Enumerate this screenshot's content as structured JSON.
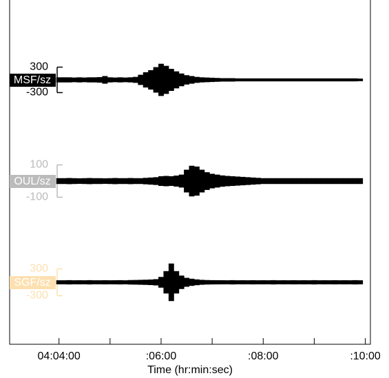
{
  "chart_data": {
    "type": "seismogram",
    "xlabel": "Time (hr:min:sec)",
    "xlim": [
      182,
      606
    ],
    "xticks": [
      {
        "value": 240,
        "label": "04:04:00"
      },
      {
        "value": 360,
        "label": ":06:00"
      },
      {
        "value": 480,
        "label": ":08:00"
      },
      {
        "value": 600,
        "label": ":10:00"
      }
    ],
    "minor_xticks": [
      300,
      420,
      540
    ],
    "x": [
      240,
      246,
      252,
      258,
      264,
      270,
      276,
      282,
      288,
      294,
      300,
      306,
      312,
      318,
      324,
      330,
      336,
      342,
      348,
      354,
      360,
      366,
      372,
      378,
      384,
      390,
      396,
      402,
      408,
      414,
      420,
      426,
      432,
      438,
      444,
      450,
      456,
      462,
      468,
      474,
      480,
      486,
      492,
      498,
      504,
      510,
      516,
      522,
      528,
      534,
      540,
      546,
      552,
      558,
      564,
      570,
      576,
      582,
      588,
      594
    ],
    "series": [
      {
        "name": "MSF/sz",
        "color": "#000000",
        "ylim": [
          -1192,
          1192
        ],
        "yticks": [
          300,
          -300
        ],
        "values": [
          60,
          60,
          60,
          55,
          60,
          55,
          60,
          60,
          65,
          90,
          60,
          55,
          60,
          55,
          60,
          70,
          120,
          180,
          230,
          300,
          380,
          330,
          260,
          200,
          150,
          110,
          90,
          70,
          60,
          55,
          50,
          45,
          40,
          40,
          40,
          35,
          35,
          35,
          35,
          35,
          35,
          35,
          35,
          35,
          35,
          35,
          35,
          35,
          35,
          35,
          35,
          35,
          35,
          35,
          35,
          35,
          35,
          35,
          35,
          30
        ]
      },
      {
        "name": "OUL/sz",
        "color": "#bbbbbb",
        "ylim": [
          -313,
          313
        ],
        "yticks": [
          100,
          -100
        ],
        "values": [
          18,
          18,
          19,
          18,
          17,
          18,
          19,
          18,
          18,
          17,
          18,
          19,
          18,
          18,
          19,
          18,
          18,
          20,
          22,
          24,
          30,
          32,
          30,
          34,
          40,
          70,
          95,
          90,
          70,
          55,
          45,
          40,
          35,
          32,
          30,
          28,
          26,
          24,
          22,
          20,
          18,
          18,
          18,
          18,
          18,
          18,
          18,
          18,
          18,
          18,
          18,
          18,
          18,
          18,
          18,
          18,
          18,
          18,
          18,
          18
        ]
      },
      {
        "name": "SGF/sz",
        "color": "#fde0b0",
        "ylim": [
          -1131,
          1131
        ],
        "yticks": [
          300,
          -300
        ],
        "values": [
          45,
          45,
          48,
          45,
          46,
          45,
          48,
          45,
          45,
          47,
          45,
          46,
          48,
          45,
          50,
          52,
          55,
          58,
          62,
          70,
          120,
          250,
          420,
          250,
          150,
          100,
          80,
          65,
          55,
          50,
          48,
          47,
          46,
          45,
          48,
          45,
          46,
          45,
          47,
          45,
          46,
          45,
          48,
          45,
          46,
          45,
          47,
          45,
          46,
          45,
          48,
          45,
          46,
          45,
          47,
          45,
          46,
          45,
          48,
          45
        ]
      }
    ]
  }
}
